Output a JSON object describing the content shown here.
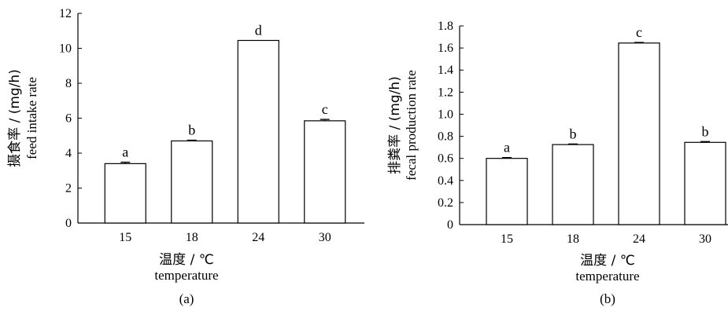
{
  "chart_data": [
    {
      "type": "bar",
      "panel_label": "(a)",
      "categories": [
        "15",
        "18",
        "24",
        "30"
      ],
      "values": [
        3.4,
        4.7,
        10.45,
        5.85
      ],
      "errors": [
        0.08,
        0.04,
        0.0,
        0.08
      ],
      "significance_letters": [
        "a",
        "b",
        "d",
        "c"
      ],
      "ylabel_cn": "摄食率 / (mg/h)",
      "ylabel_en": "feed intake rate",
      "xlabel_cn": "温度 / ℃",
      "xlabel_en": "temperature",
      "ylim": [
        0,
        12
      ],
      "yticks": [
        "0",
        "2",
        "4",
        "6",
        "8",
        "10",
        "12"
      ],
      "grid": false,
      "bar_fill": "#ffffff",
      "bar_stroke": "#000000"
    },
    {
      "type": "bar",
      "panel_label": "(b)",
      "categories": [
        "15",
        "18",
        "24",
        "30"
      ],
      "values": [
        0.6,
        0.725,
        1.645,
        0.745
      ],
      "errors": [
        0.007,
        0.005,
        0.005,
        0.007
      ],
      "significance_letters": [
        "a",
        "b",
        "c",
        "b"
      ],
      "ylabel_cn": "排粪率 / (mg/h)",
      "ylabel_en": "fecal production rate",
      "xlabel_cn": "温度 / ℃",
      "xlabel_en": "temperature",
      "ylim": [
        0,
        1.8
      ],
      "yticks": [
        "0",
        "0.2",
        "0.4",
        "0.6",
        "0.8",
        "1.0",
        "1.2",
        "1.4",
        "1.6",
        "1.8"
      ],
      "grid": false,
      "bar_fill": "#ffffff",
      "bar_stroke": "#000000"
    }
  ]
}
